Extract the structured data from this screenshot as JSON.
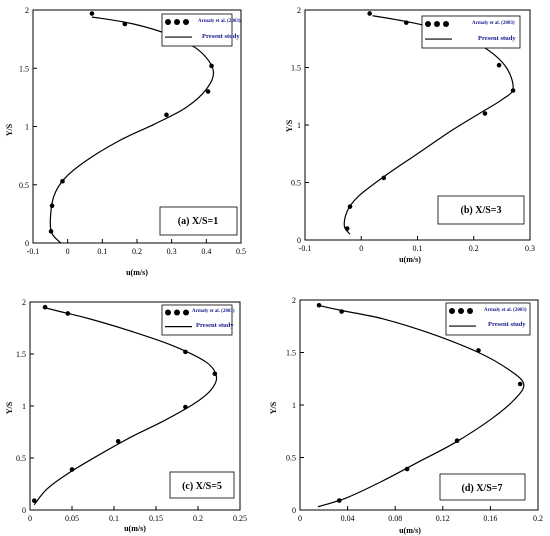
{
  "legend": {
    "experimental": "Armaly et al. (2003)",
    "numerical": "Present study"
  },
  "chart_data": [
    {
      "type": "line",
      "caption": "(a) X/S=1",
      "xlabel": "u(m/s)",
      "ylabel": "Y/S",
      "xlim": [
        -0.1,
        0.5
      ],
      "ylim": [
        0,
        2
      ],
      "xticks": [
        "-0.1",
        "0",
        "0.1",
        "0.2",
        "0.3",
        "0.4",
        "0.5"
      ],
      "yticks": [
        "0",
        "0.5",
        "1",
        "1.5",
        "2"
      ],
      "series": [
        {
          "style": "line",
          "points": [
            [
              -0.02,
              0
            ],
            [
              -0.045,
              0.08
            ],
            [
              -0.05,
              0.2
            ],
            [
              -0.04,
              0.4
            ],
            [
              -0.01,
              0.55
            ],
            [
              0.05,
              0.7
            ],
            [
              0.15,
              0.88
            ],
            [
              0.25,
              1.02
            ],
            [
              0.34,
              1.16
            ],
            [
              0.4,
              1.32
            ],
            [
              0.42,
              1.48
            ],
            [
              0.38,
              1.65
            ],
            [
              0.3,
              1.78
            ],
            [
              0.19,
              1.88
            ],
            [
              0.07,
              1.94
            ]
          ]
        },
        {
          "style": "points",
          "points": [
            [
              -0.048,
              0.1
            ],
            [
              -0.045,
              0.32
            ],
            [
              -0.015,
              0.53
            ],
            [
              0.285,
              1.1
            ],
            [
              0.405,
              1.3
            ],
            [
              0.415,
              1.52
            ],
            [
              0.165,
              1.88
            ],
            [
              0.07,
              1.97
            ]
          ]
        }
      ]
    },
    {
      "type": "line",
      "caption": "(b) X/S=3",
      "xlabel": "u(m/s)",
      "ylabel": "Y/S",
      "xlim": [
        -0.1,
        0.3
      ],
      "ylim": [
        0,
        2
      ],
      "xticks": [
        "-0.1",
        "0",
        "0.1",
        "0.2",
        "0.3"
      ],
      "yticks": [
        "0",
        "0.5",
        "1",
        "1.5",
        "2"
      ],
      "series": [
        {
          "style": "line",
          "points": [
            [
              -0.02,
              0.05
            ],
            [
              -0.03,
              0.12
            ],
            [
              -0.025,
              0.25
            ],
            [
              -0.005,
              0.38
            ],
            [
              0.04,
              0.55
            ],
            [
              0.1,
              0.75
            ],
            [
              0.16,
              0.95
            ],
            [
              0.21,
              1.1
            ],
            [
              0.25,
              1.22
            ],
            [
              0.27,
              1.32
            ],
            [
              0.255,
              1.52
            ],
            [
              0.21,
              1.7
            ],
            [
              0.15,
              1.82
            ],
            [
              0.08,
              1.9
            ],
            [
              0.02,
              1.95
            ]
          ]
        },
        {
          "style": "points",
          "points": [
            [
              -0.025,
              0.1
            ],
            [
              -0.02,
              0.29
            ],
            [
              0.04,
              0.54
            ],
            [
              0.22,
              1.1
            ],
            [
              0.27,
              1.3
            ],
            [
              0.245,
              1.52
            ],
            [
              0.08,
              1.89
            ],
            [
              0.015,
              1.97
            ]
          ]
        }
      ]
    },
    {
      "type": "line",
      "caption": "(c) X/S=5",
      "xlabel": "u(m/s)",
      "ylabel": "Y/S",
      "xlim": [
        0,
        0.25
      ],
      "ylim": [
        0,
        2
      ],
      "xticks": [
        "0",
        "0.05",
        "0.1",
        "0.15",
        "0.2",
        "0.25"
      ],
      "yticks": [
        "0",
        "0.5",
        "1",
        "1.5",
        "2"
      ],
      "series": [
        {
          "style": "line",
          "points": [
            [
              0.005,
              0.05
            ],
            [
              0.02,
              0.2
            ],
            [
              0.045,
              0.35
            ],
            [
              0.08,
              0.52
            ],
            [
              0.12,
              0.7
            ],
            [
              0.16,
              0.86
            ],
            [
              0.195,
              1.02
            ],
            [
              0.215,
              1.15
            ],
            [
              0.222,
              1.28
            ],
            [
              0.21,
              1.42
            ],
            [
              0.17,
              1.58
            ],
            [
              0.12,
              1.72
            ],
            [
              0.07,
              1.84
            ],
            [
              0.035,
              1.91
            ],
            [
              0.015,
              1.95
            ]
          ]
        },
        {
          "style": "points",
          "points": [
            [
              0.005,
              0.09
            ],
            [
              0.05,
              0.39
            ],
            [
              0.105,
              0.66
            ],
            [
              0.185,
              0.99
            ],
            [
              0.22,
              1.31
            ],
            [
              0.185,
              1.52
            ],
            [
              0.045,
              1.89
            ],
            [
              0.018,
              1.95
            ]
          ]
        }
      ]
    },
    {
      "type": "line",
      "caption": "(d) X/S=7",
      "xlabel": "u(m/s)",
      "ylabel": "Y/S",
      "xlim": [
        0,
        0.2
      ],
      "ylim": [
        0,
        2
      ],
      "xticks": [
        "0",
        "0.04",
        "0.08",
        "0.12",
        "0.16",
        "0.2"
      ],
      "yticks": [
        "0",
        "0.5",
        "1",
        "1.5",
        "2"
      ],
      "series": [
        {
          "style": "line",
          "points": [
            [
              0.015,
              0.03
            ],
            [
              0.04,
              0.12
            ],
            [
              0.07,
              0.28
            ],
            [
              0.1,
              0.46
            ],
            [
              0.13,
              0.64
            ],
            [
              0.16,
              0.86
            ],
            [
              0.18,
              1.05
            ],
            [
              0.188,
              1.2
            ],
            [
              0.175,
              1.34
            ],
            [
              0.15,
              1.5
            ],
            [
              0.11,
              1.68
            ],
            [
              0.07,
              1.82
            ],
            [
              0.035,
              1.9
            ],
            [
              0.015,
              1.95
            ]
          ]
        },
        {
          "style": "points",
          "points": [
            [
              0.033,
              0.09
            ],
            [
              0.09,
              0.39
            ],
            [
              0.132,
              0.66
            ],
            [
              0.185,
              1.2
            ],
            [
              0.15,
              1.52
            ],
            [
              0.035,
              1.89
            ],
            [
              0.016,
              1.95
            ]
          ]
        }
      ]
    }
  ]
}
